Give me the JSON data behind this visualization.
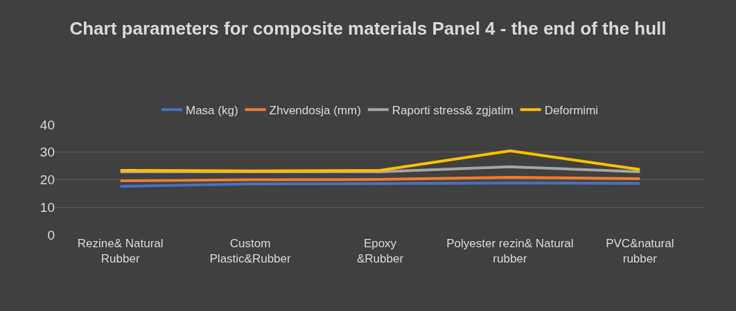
{
  "chart_data": {
    "type": "line",
    "title": "Chart parameters for composite materials Panel 4 - the end of the hull",
    "categories": [
      "Rezine& Natural Rubber",
      "Custom Plastic&Rubber",
      "Epoxy &Rubber",
      "Polyester rezin& Natural rubber",
      "PVC&natural rubber"
    ],
    "series": [
      {
        "name": "Masa (kg)",
        "color": "#4472c4",
        "values": [
          17.6,
          18.5,
          18.6,
          18.8,
          18.7
        ]
      },
      {
        "name": "Zhvendosja (mm)",
        "color": "#ed7d31",
        "values": [
          19.6,
          20.0,
          20.1,
          20.9,
          20.4
        ]
      },
      {
        "name": "Raporti stress& zgjatim",
        "color": "#a5a5a5",
        "values": [
          22.9,
          22.9,
          22.9,
          24.7,
          22.9
        ]
      },
      {
        "name": "Deformimi",
        "color": "#ffc000",
        "values": [
          23.4,
          23.2,
          23.4,
          30.5,
          23.7
        ]
      }
    ],
    "ylim": [
      0,
      40
    ],
    "yticks": [
      0,
      10,
      20,
      30,
      40
    ],
    "grid": "y",
    "legend": "top",
    "marker": "none",
    "line_style": "solid"
  }
}
